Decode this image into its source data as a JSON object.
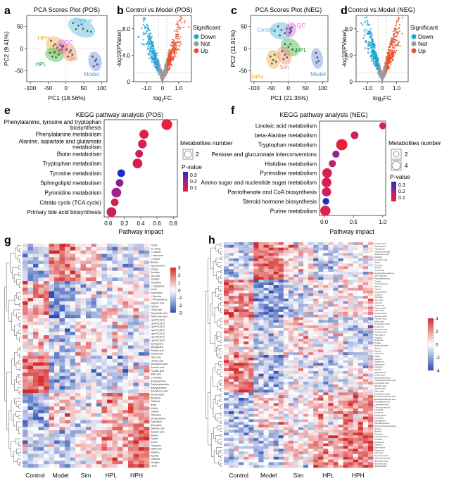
{
  "panel_letters": [
    "a",
    "b",
    "c",
    "d",
    "e",
    "f",
    "g",
    "h"
  ],
  "legend_labels": {
    "significant_title": "Significant",
    "down": "Down",
    "not": "Not",
    "up": "Up",
    "metabolites_number": "Metabolites number",
    "pvalue": "P-value"
  },
  "colors": {
    "down": "#1ea5d3",
    "not": "#9a9a9a",
    "up": "#e8532b",
    "control_group": "#5bb8e0",
    "hph_group": "#e8b040",
    "qc_group": "#e060e0",
    "hpl_group": "#3db84a",
    "sim_group": "#f08c66",
    "model_group": "#6a8fe0",
    "heat_low": "#2c4fb3",
    "heat_mid": "#ffffff",
    "heat_high": "#d42a2a",
    "pval_low": "#1a2fbf",
    "pval_mid": "#a8208a",
    "pval_high": "#e8203a"
  },
  "chart_data": [
    {
      "id": "a",
      "type": "scatter",
      "title": "PCA Scores Plot (POS)",
      "xlabel": "PC1 (18.56%)",
      "ylabel": "PC2 (9.41%)",
      "xticks": [
        "-100",
        "-50",
        "0",
        "50",
        "100"
      ],
      "yticks": [
        "50",
        "0",
        "-50"
      ],
      "xlim": [
        -110,
        115
      ],
      "ylim": [
        -75,
        75
      ],
      "groups": [
        {
          "name": "Control",
          "color": "#5bb8e0",
          "points": [
            [
              20,
              58
            ],
            [
              35,
              52
            ],
            [
              48,
              45
            ],
            [
              60,
              40
            ],
            [
              28,
              44
            ],
            [
              70,
              38
            ],
            [
              44,
              55
            ]
          ]
        },
        {
          "name": "HPH",
          "color": "#e8b040",
          "points": [
            [
              -42,
              18
            ],
            [
              -30,
              10
            ],
            [
              -25,
              2
            ],
            [
              -18,
              -4
            ],
            [
              -35,
              6
            ]
          ]
        },
        {
          "name": "QC",
          "color": "#e060e0",
          "points": [
            [
              -15,
              8
            ],
            [
              -10,
              4
            ],
            [
              -12,
              -2
            ],
            [
              -8,
              6
            ]
          ]
        },
        {
          "name": "HPL",
          "color": "#3db84a",
          "points": [
            [
              -45,
              -10
            ],
            [
              -38,
              -18
            ],
            [
              -28,
              -20
            ],
            [
              -20,
              -14
            ],
            [
              -32,
              -8
            ]
          ]
        },
        {
          "name": "Sim",
          "color": "#f08c66",
          "points": [
            [
              2,
              -2
            ],
            [
              10,
              -8
            ],
            [
              18,
              -14
            ],
            [
              5,
              -18
            ],
            [
              14,
              -4
            ]
          ]
        },
        {
          "name": "Model",
          "color": "#6a8fe0",
          "points": [
            [
              75,
              -18
            ],
            [
              82,
              -28
            ],
            [
              88,
              -36
            ],
            [
              78,
              -40
            ],
            [
              85,
              -24
            ]
          ]
        }
      ]
    },
    {
      "id": "b",
      "type": "scatter",
      "title": "Control vs.Model (POS)",
      "xlabel": "log2FC",
      "ylabel": "-log10(PValue)",
      "xticks": [
        "-1.0",
        "0",
        "1.0"
      ],
      "yticks": [
        "8.0",
        "4.0",
        "0"
      ],
      "xlim": [
        -1.8,
        1.8
      ],
      "ylim": [
        0,
        10
      ],
      "series": [
        {
          "name": "Down"
        },
        {
          "name": "Not"
        },
        {
          "name": "Up"
        }
      ]
    },
    {
      "id": "c",
      "type": "scatter",
      "title": "PCA Scores Plot (NEG)",
      "xlabel": "PC1 (21.35%)",
      "ylabel": "PC2 (11.91%)",
      "xticks": [
        "-100",
        "-50",
        "0",
        "50",
        "100"
      ],
      "yticks": [
        "50",
        "0",
        "-50"
      ],
      "xlim": [
        -110,
        115
      ],
      "ylim": [
        -75,
        75
      ],
      "groups": [
        {
          "name": "Control",
          "color": "#5bb8e0",
          "points": [
            [
              -30,
              50
            ],
            [
              -20,
              42
            ],
            [
              -10,
              35
            ],
            [
              -25,
              30
            ],
            [
              -40,
              40
            ],
            [
              -5,
              45
            ]
          ]
        },
        {
          "name": "QC",
          "color": "#e060e0",
          "points": [
            [
              5,
              45
            ],
            [
              8,
              40
            ],
            [
              4,
              36
            ],
            [
              10,
              48
            ]
          ]
        },
        {
          "name": "HPL",
          "color": "#3db84a",
          "points": [
            [
              -10,
              10
            ],
            [
              0,
              4
            ],
            [
              12,
              -2
            ],
            [
              22,
              -6
            ],
            [
              6,
              10
            ]
          ]
        },
        {
          "name": "HPH",
          "color": "#e8b040",
          "points": [
            [
              -52,
              -18
            ],
            [
              -44,
              -26
            ],
            [
              -36,
              -30
            ],
            [
              -48,
              -34
            ],
            [
              -40,
              -14
            ]
          ]
        },
        {
          "name": "Sim",
          "color": "#f08c66",
          "points": [
            [
              -18,
              -6
            ],
            [
              -10,
              -14
            ],
            [
              -4,
              -20
            ],
            [
              -14,
              -24
            ]
          ]
        },
        {
          "name": "Model",
          "color": "#6a8fe0",
          "points": [
            [
              80,
              -10
            ],
            [
              84,
              -20
            ],
            [
              88,
              -28
            ],
            [
              82,
              -32
            ]
          ]
        }
      ]
    },
    {
      "id": "d",
      "type": "scatter",
      "title": "Control vs.Model (NEG)",
      "xlabel": "log2FC",
      "ylabel": "-log10(PValue)",
      "xticks": [
        "-1.0",
        "0",
        "1.0"
      ],
      "yticks": [
        "8.0",
        "4.0",
        "0"
      ],
      "xlim": [
        -1.8,
        1.8
      ],
      "ylim": [
        0,
        10
      ],
      "series": [
        {
          "name": "Down"
        },
        {
          "name": "Not"
        },
        {
          "name": "Up"
        }
      ]
    },
    {
      "id": "e",
      "type": "scatter",
      "title": "KEGG pathway analysis (POS)",
      "xlabel": "Pathway impact",
      "xticks": [
        "0.0",
        "0.2",
        "0.4",
        "0.6",
        "0.8"
      ],
      "xlim": [
        -0.05,
        0.85
      ],
      "size_legend": [
        "2"
      ],
      "pvalue_ticks": [
        "0.3",
        "0.2",
        "0.1"
      ],
      "pathways": [
        {
          "name": "Phenylalanine, tyrosine and tryptophan biosynthesis",
          "impact": 0.72,
          "size": 3,
          "p": 0.02
        },
        {
          "name": "Phenylalanine metabolism",
          "impact": 0.44,
          "size": 2.4,
          "p": 0.05
        },
        {
          "name": "Alanine, aspartate and glutamate metabolism",
          "impact": 0.42,
          "size": 2.2,
          "p": 0.07
        },
        {
          "name": "Biotin metabolism",
          "impact": 0.38,
          "size": 1.8,
          "p": 0.09
        },
        {
          "name": "Tryptophan metabolism",
          "impact": 0.36,
          "size": 2.6,
          "p": 0.06
        },
        {
          "name": "Tyrosine metabolism",
          "impact": 0.16,
          "size": 1.8,
          "p": 0.34
        },
        {
          "name": "Sphingolipid metabolism",
          "impact": 0.14,
          "size": 1.8,
          "p": 0.22
        },
        {
          "name": "Pyrimidine metabolism",
          "impact": 0.1,
          "size": 2.6,
          "p": 0.19
        },
        {
          "name": "Citrate cycle (TCA cycle)",
          "impact": 0.08,
          "size": 1.8,
          "p": 0.08
        },
        {
          "name": "Primary bile acid biosynthesis",
          "impact": 0.04,
          "size": 2.6,
          "p": 0.09
        }
      ]
    },
    {
      "id": "f",
      "type": "scatter",
      "title": "KEGG pathway analysis (NEG)",
      "xlabel": "Pathway impact",
      "xticks": [
        "0.0",
        "0.5",
        "1.0"
      ],
      "xlim": [
        -0.08,
        1.05
      ],
      "size_legend": [
        "2",
        "4"
      ],
      "pvalue_ticks": [
        "0.3",
        "0.2",
        "0.1"
      ],
      "pathways": [
        {
          "name": "Linoleic acid metabolism",
          "impact": 1.0,
          "size": 1.5,
          "p": 0.08
        },
        {
          "name": "beta-Alanine metabolism",
          "impact": 0.52,
          "size": 1.8,
          "p": 0.09
        },
        {
          "name": "Tryptophan metabolism",
          "impact": 0.3,
          "size": 3.2,
          "p": 0.02
        },
        {
          "name": "Pentose and glucuronate interconversions",
          "impact": 0.2,
          "size": 1.6,
          "p": 0.2
        },
        {
          "name": "Histidine metabolism",
          "impact": 0.14,
          "size": 1.6,
          "p": 0.12
        },
        {
          "name": "Pyrimidine metabolism",
          "impact": 0.05,
          "size": 2.6,
          "p": 0.06
        },
        {
          "name": "Amino sugar and nucleotide sugar metabolism",
          "impact": 0.04,
          "size": 2.6,
          "p": 0.07
        },
        {
          "name": "Pantothenate and CoA biosynthesis",
          "impact": 0.04,
          "size": 2.4,
          "p": 0.09
        },
        {
          "name": "Steroid hormone biosynthesis",
          "impact": 0.03,
          "size": 1.4,
          "p": 0.34
        },
        {
          "name": "Purine metabolism",
          "impact": 0.02,
          "size": 2.8,
          "p": 0.05
        }
      ]
    },
    {
      "id": "g",
      "type": "heatmap",
      "groups": [
        "Control",
        "Model",
        "Sim",
        "HPL",
        "HPH"
      ],
      "colorbar_ticks": [
        "3",
        "2",
        "1",
        "0",
        "-1",
        "-2",
        "-3"
      ],
      "row_labels": [
        "Citrate",
        "DL-Valine",
        "L-Leucine",
        "L-Isoleucine",
        "L-Proline",
        "Betaine",
        "Hypoxanthine",
        "Inosine",
        "Xanthine",
        "Uric acid",
        "Creatine",
        "Creatinine",
        "L-Tryptophan",
        "Indole",
        "Kynurenine",
        "L-Tyrosine",
        "L-Phenylalanine",
        "Hippuric acid",
        "Taurine",
        "Cholic acid",
        "Glycocholic acid",
        "Taurocholic acid",
        "LysoPC(16:0)",
        "LysoPC(18:0)",
        "LysoPC(18:1)",
        "LysoPC(18:2)",
        "LysoPC(20:4)",
        "LysoPE(16:0)",
        "LysoPE(18:0)",
        "Sphinganine",
        "Sphingosine",
        "Palmitic acid",
        "Stearic acid",
        "Oleic acid",
        "Linoleic acid",
        "Arachidonic acid",
        "Succinic acid",
        "Fumaric acid",
        "Malic acid",
        "L-Carnitine",
        "Acetylcarnitine",
        "Propionylcarnitine",
        "Butyrylcarnitine",
        "Pantothenic acid",
        "Nicotinamide",
        "Riboflavin",
        "Thiamine",
        "Biotin",
        "Uridine",
        "Cytidine",
        "Thymidine",
        "Deoxycytidine",
        "Guanosine",
        "Adenosine",
        "Glutamic acid",
        "Aspartic acid",
        "Alanine",
        "Glycine",
        "Serine",
        "Threonine",
        "Methionine",
        "Histidine",
        "Arginine",
        "Ornithine",
        "Citrulline",
        "Lysine"
      ]
    },
    {
      "id": "h",
      "type": "heatmap",
      "groups": [
        "Control",
        "Model",
        "Sim",
        "HPL",
        "HPH"
      ],
      "colorbar_ticks": [
        "4",
        "2",
        "0",
        "-2",
        "-4"
      ],
      "row_labels": [
        "Linoleic acid",
        "beta-Alanine",
        "Tryptophan",
        "Indoleacetic acid",
        "Glucuronic acid",
        "Histidine",
        "Urocanic acid",
        "Uracil",
        "Cytosine",
        "Uridine",
        "Orotic acid",
        "N-Acetylglucosamine",
        "UDP-glucose",
        "Pantothenic acid",
        "Cortisol",
        "Corticosterone",
        "Estrone",
        "Inosine",
        "Hypoxanthine",
        "Guanine",
        "Xanthine",
        "Uric acid",
        "Adenine",
        "Lactic acid",
        "Pyruvic acid",
        "Citric acid",
        "Isocitric acid",
        "Succinic acid",
        "Fumaric acid",
        "Malic acid",
        "Oxoglutaric acid",
        "Glutamine",
        "Glutamic acid",
        "Aspartic acid",
        "Asparagine",
        "Arginine",
        "Ornithine",
        "Proline",
        "Hydroxyproline",
        "Serine",
        "Glycine",
        "Threonine",
        "Valine",
        "Leucine",
        "Isoleucine",
        "Methionine",
        "Cysteine",
        "Taurine",
        "Hypotaurine",
        "Cholic acid",
        "Deoxycholic acid",
        "Chenodeoxycholic acid",
        "Lithocholic acid",
        "Palmitic acid",
        "Stearic acid",
        "Oleic acid",
        "Arachidonic acid",
        "Docosahexaenoic acid",
        "Eicosapentaenoic acid",
        "Prostaglandin E2",
        "Leukotriene B4",
        "Thromboxane B2",
        "12-HETE",
        "15-HETE",
        "Sphingosine",
        "Ceramide",
        "Sphinganine",
        "Phosphocholine",
        "Glycerophosphocholine",
        "Choline",
        "Betaine",
        "Carnitine",
        "Acetylcarnitine",
        "Creatine",
        "Creatinine",
        "Allantoin",
        "Spermidine",
        "Putrescine",
        "Spermine",
        "Kynurenic acid",
        "Xanthurenic acid",
        "Quinolinic acid",
        "Nicotinic acid",
        "Nicotinamide"
      ]
    }
  ]
}
